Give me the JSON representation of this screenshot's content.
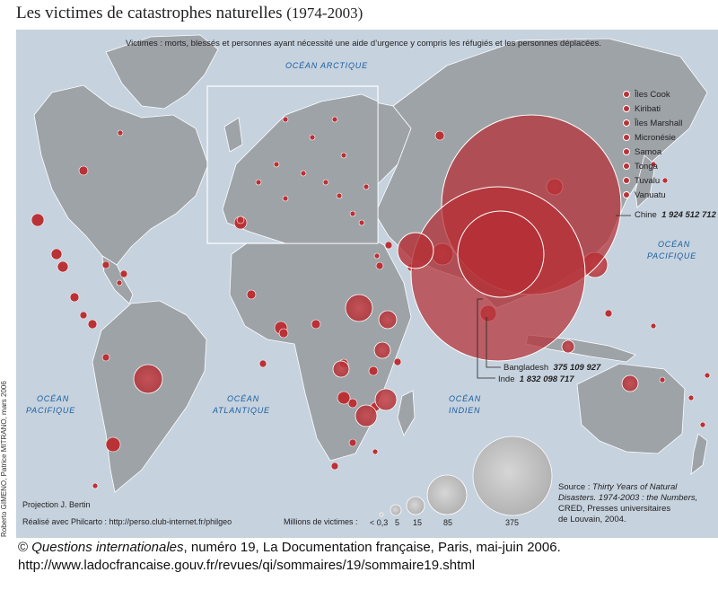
{
  "title": {
    "main": "Les victimes de catastrophes naturelles",
    "dates": "(1974-2003)"
  },
  "subtitle": "Victimes : morts, blessés et personnes ayant nécessité une aide d’urgence y compris les réfugiés et les personnes déplacées.",
  "oceans": {
    "arctic": "OCÉAN ARCTIQUE",
    "pacific_east_1": "OCÉAN",
    "pacific_east_2": "PACIFIQUE",
    "pacific_west_1": "OCÉAN",
    "pacific_west_2": "PACIFIQUE",
    "atlantic_1": "OCÉAN",
    "atlantic_2": "ATLANTIQUE",
    "indian_1": "OCÉAN",
    "indian_2": "INDIEN"
  },
  "islands": [
    "Îles Cook",
    "Kiribati",
    "Îles Marshall",
    "Micronésie",
    "Samoa",
    "Tonga",
    "Tuvalu",
    "Vanuatu"
  ],
  "labels": {
    "china_name": "Chine",
    "china_value": "1 924 512 712",
    "bangladesh_name": "Bangladesh",
    "bangladesh_value": "375 109 927",
    "india_name": "Inde",
    "india_value": "1 832 098 717"
  },
  "legend": {
    "title": "Millions de victimes :",
    "values": [
      "< 0,3",
      "5",
      "15",
      "85",
      "375"
    ]
  },
  "source": {
    "line1_prefix": "Source : ",
    "line1_italic": "Thirty Years of Natural",
    "line2_italic": "Disasters. 1974-2003 : the Numbers,",
    "line3": "CRED, Presses universitaires",
    "line4": "de Louvain, 2004."
  },
  "projection": "Projection J. Bertin",
  "made_with": "Réalisé avec Philcarto : http://perso.club-internet.fr/philgeo",
  "credit": "Roberto GIMENO, Patrice MITRANO, mars 2006",
  "footer": {
    "copyright": "©",
    "publication": "Questions internationales",
    "rest": ", numéro 19, La Documentation française, Paris, mai-juin 2006.",
    "url": "http://www.ladocfrancaise.gouv.fr/revues/qi/sommaires/19/sommaire19.shtml"
  },
  "colors": {
    "sea": "#c6d2de",
    "land": "#9da2a7",
    "bubble": "#b93236",
    "legend_bubble": "#c4c4c4"
  }
}
